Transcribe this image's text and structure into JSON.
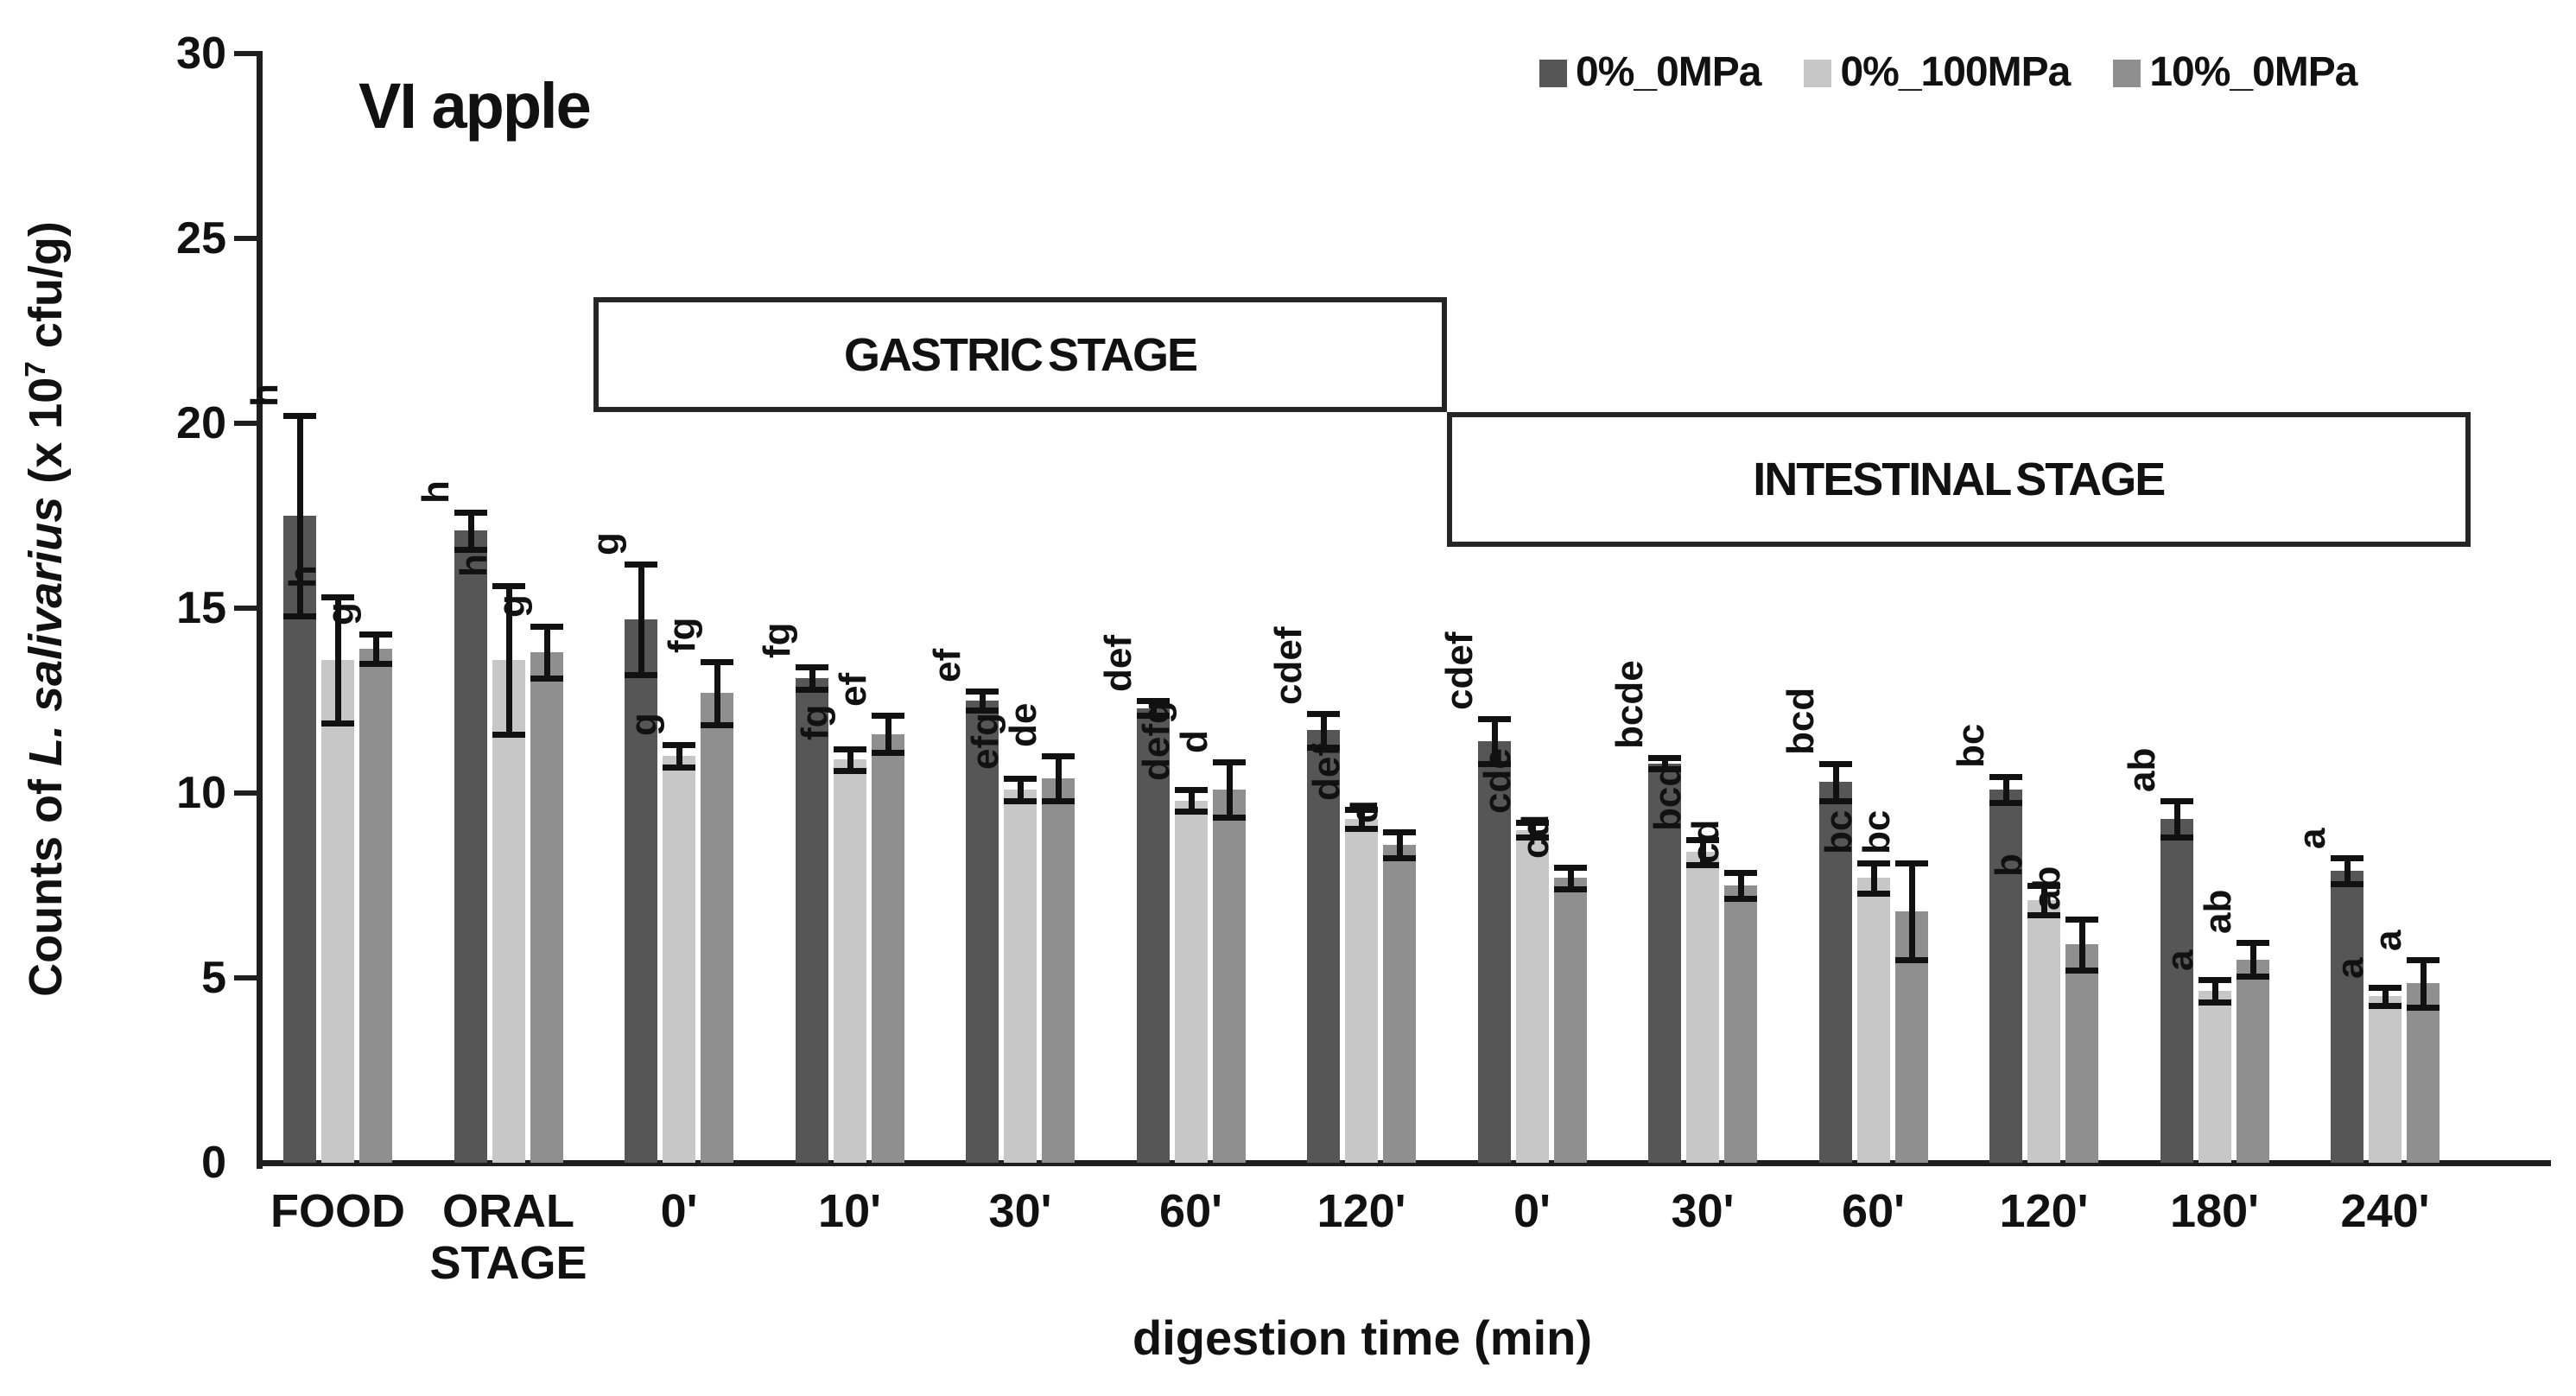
{
  "chart_data": {
    "type": "bar",
    "title": "VI apple",
    "xlabel": "digestion time (min)",
    "ylabel": {
      "prefix": "Counts of ",
      "species": "L. salivarius",
      "mid": " (x 10",
      "exponent": "7",
      "suffix": " cfu/g)"
    },
    "ylim": [
      0,
      30
    ],
    "yticks": [
      "0",
      "5",
      "10",
      "15",
      "20",
      "25",
      "30"
    ],
    "grid": false,
    "legend_position": "top-right",
    "categories": [
      "FOOD",
      "ORAL\nSTAGE",
      "0'",
      "10'",
      "30'",
      "60'",
      "120'",
      "0'",
      "30'",
      "60'",
      "120'",
      "180'",
      "240'"
    ],
    "series": [
      {
        "name": "0%_0MPa",
        "color": "#565656",
        "values": [
          17.5,
          17.1,
          14.7,
          13.1,
          12.5,
          12.3,
          11.7,
          11.4,
          10.8,
          10.3,
          10.1,
          9.3,
          7.9
        ],
        "errors": [
          2.7,
          0.5,
          1.5,
          0.3,
          0.25,
          0.2,
          0.45,
          0.6,
          0.15,
          0.5,
          0.35,
          0.5,
          0.35
        ],
        "letters": [
          "h",
          "h",
          "g",
          "fg",
          "ef",
          "def",
          "cdef",
          "cdef",
          "bcde",
          "bcd",
          "bc",
          "ab",
          "a"
        ]
      },
      {
        "name": "0%_100MPa",
        "color": "#c7c7c7",
        "values": [
          13.6,
          13.6,
          11.0,
          10.9,
          10.1,
          9.8,
          9.3,
          9.0,
          8.4,
          7.7,
          7.1,
          4.65,
          4.5
        ],
        "errors": [
          1.7,
          2.0,
          0.3,
          0.3,
          0.3,
          0.3,
          0.25,
          0.2,
          0.35,
          0.4,
          0.4,
          0.3,
          0.25
        ],
        "letters": [
          "h",
          "h",
          "g",
          "fg",
          "efg",
          "defg",
          "def",
          "cde",
          "bcd",
          "bc",
          "b",
          "a",
          "a"
        ]
      },
      {
        "name": "10%_0MPa",
        "color": "#8f8f8f",
        "values": [
          13.9,
          13.8,
          12.7,
          11.6,
          10.4,
          10.1,
          8.6,
          7.7,
          7.5,
          6.8,
          5.9,
          5.5,
          4.85
        ],
        "errors": [
          0.4,
          0.7,
          0.85,
          0.5,
          0.6,
          0.75,
          0.35,
          0.3,
          0.35,
          1.3,
          0.7,
          0.45,
          0.65
        ],
        "letters": [
          "g",
          "g",
          "fg",
          "ef",
          "de",
          "d",
          "d",
          "cd",
          "cd",
          "bc",
          "ab",
          "ab",
          "a"
        ]
      }
    ],
    "stage_boxes": [
      {
        "label": "GASTRIC STAGE",
        "from": 2,
        "to": 6,
        "top": 23.4,
        "bottom": 20.3
      },
      {
        "label": "INTESTINAL STAGE",
        "from": 7,
        "to": 12,
        "top": 20.3,
        "bottom": 16.65
      }
    ]
  }
}
